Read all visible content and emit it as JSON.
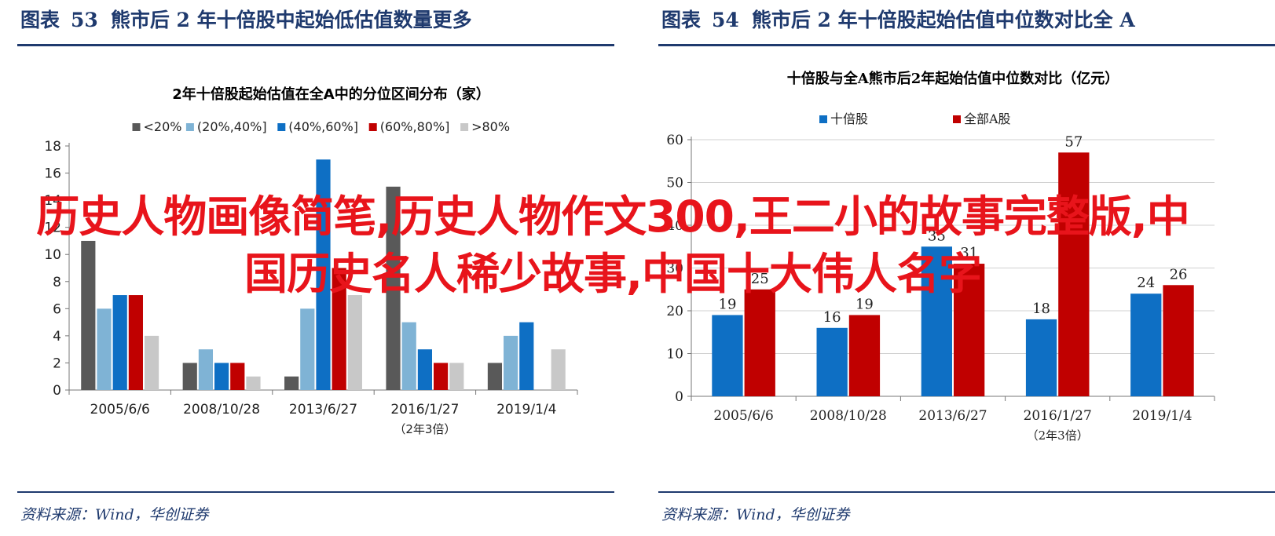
{
  "left": {
    "figure_label": "图表",
    "figure_number": "53",
    "figure_title": "熊市后 2 年十倍股中起始低估值数量更多",
    "source": "资料来源：Wind，华创证券",
    "chart_data": {
      "type": "bar",
      "title": "2年十倍股起始估值在全A中的分位区间分布（家）",
      "categories": [
        "2005/6/6",
        "2008/10/28",
        "2013/6/27",
        "2016/1/27",
        "2019/1/4"
      ],
      "category_note": {
        "category": "2016/1/27",
        "text": "（2年3倍）"
      },
      "series": [
        {
          "name": "<20%",
          "color": "#595959",
          "values": [
            11,
            2,
            1,
            15,
            2
          ]
        },
        {
          "name": "(20%,40%]",
          "color": "#7fb3d5",
          "values": [
            6,
            3,
            6,
            5,
            4
          ]
        },
        {
          "name": "(40%,60%]",
          "color": "#0e6fc4",
          "values": [
            7,
            2,
            17,
            3,
            5
          ]
        },
        {
          "name": "(60%,80%]",
          "color": "#c00000",
          "values": [
            7,
            2,
            9,
            2,
            0
          ]
        },
        {
          "name": ">80%",
          "color": "#c8c8c8",
          "values": [
            4,
            1,
            7,
            2,
            3
          ]
        }
      ],
      "ylim": [
        0,
        18
      ],
      "yticks": [
        0,
        2,
        4,
        6,
        8,
        10,
        12,
        14,
        16,
        18
      ],
      "legend_position": "top"
    }
  },
  "right": {
    "figure_label": "图表",
    "figure_number": "54",
    "figure_title": "熊市后 2 年十倍股起始估值中位数对比全 A",
    "source": "资料来源：Wind，华创证券",
    "chart_data": {
      "type": "bar",
      "title": "十倍股与全A熊市后2年起始估值中位数对比（亿元）",
      "categories": [
        "2005/6/6",
        "2008/10/28",
        "2013/6/27",
        "2016/1/27",
        "2019/1/4"
      ],
      "category_note": {
        "category": "2016/1/27",
        "text": "（2年3倍）"
      },
      "series": [
        {
          "name": "十倍股",
          "color": "#0e6fc4",
          "values": [
            19,
            16,
            35,
            18,
            24
          ]
        },
        {
          "name": "全部A股",
          "color": "#c00000",
          "values": [
            25,
            19,
            31,
            57,
            26
          ]
        }
      ],
      "data_labels": true,
      "ylim": [
        0,
        60
      ],
      "yticks": [
        0,
        10,
        20,
        30,
        40,
        50,
        60
      ],
      "legend_position": "top"
    }
  },
  "overlay_text": "历史人物画像简笔,历史人物作文300,王二小的故事完整版,中国历史名人稀少故事,中国十大伟人名字"
}
